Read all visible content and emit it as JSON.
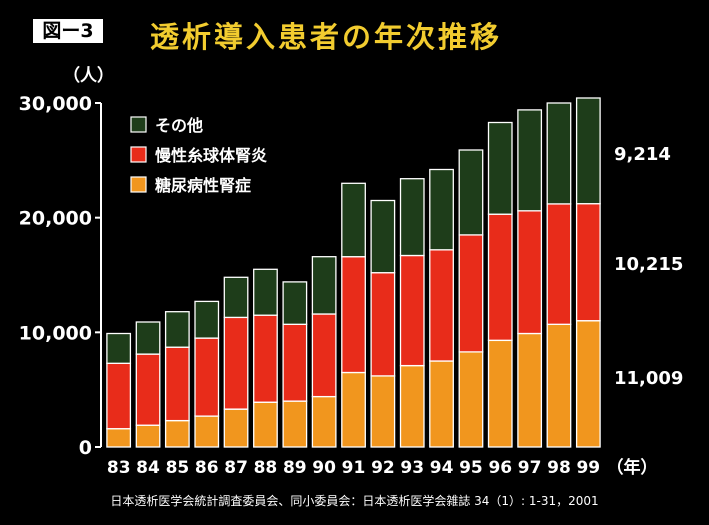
{
  "figure_label": "図ー3",
  "title": "透析導入患者の年次推移",
  "unit_y": "（人）",
  "source": "日本透析医学会統計調査委員会、同小委員会：日本透析医学会雑誌 34（1）: 1-31，2001",
  "colors": {
    "background": "#000000",
    "title": "#f2cc2f",
    "other": "#1e3d1a",
    "glomerulonephritis": "#e82c1a",
    "diabetic": "#f1961e",
    "outline": "#ffffff"
  },
  "chart_data": {
    "type": "bar",
    "stacked": true,
    "title": "透析導入患者の年次推移",
    "ylabel": "（人）",
    "xlabel": "（年）",
    "ylim": [
      0,
      30000
    ],
    "yticks": [
      "0",
      "10,000",
      "20,000",
      "30,000"
    ],
    "yticks_values": [
      0,
      10000,
      20000,
      30000
    ],
    "grid": false,
    "legend_position": "top-left",
    "categories": [
      "83",
      "84",
      "85",
      "86",
      "87",
      "88",
      "89",
      "90",
      "91",
      "92",
      "93",
      "94",
      "95",
      "96",
      "97",
      "98",
      "99"
    ],
    "series": [
      {
        "name": "糖尿病性腎症",
        "color": "#f1961e",
        "values": [
          1600,
          1900,
          2300,
          2700,
          3300,
          3900,
          4000,
          4400,
          6500,
          6200,
          7100,
          7500,
          8300,
          9300,
          9900,
          10700,
          11009
        ]
      },
      {
        "name": "慢性糸球体腎炎",
        "color": "#e82c1a",
        "values": [
          5700,
          6200,
          6400,
          6800,
          8000,
          7600,
          6700,
          7200,
          10100,
          9000,
          9600,
          9700,
          10200,
          11000,
          10700,
          10500,
          10215
        ]
      },
      {
        "name": "その他",
        "color": "#1e3d1a",
        "values": [
          2600,
          2800,
          3100,
          3200,
          3500,
          4000,
          3700,
          5000,
          6400,
          6300,
          6700,
          7000,
          7400,
          8000,
          8800,
          8800,
          9214
        ]
      }
    ],
    "legend": [
      "その他",
      "慢性糸球体腎炎",
      "糖尿病性腎症"
    ],
    "annotations": [
      "9,214",
      "10,215",
      "11,009"
    ]
  }
}
